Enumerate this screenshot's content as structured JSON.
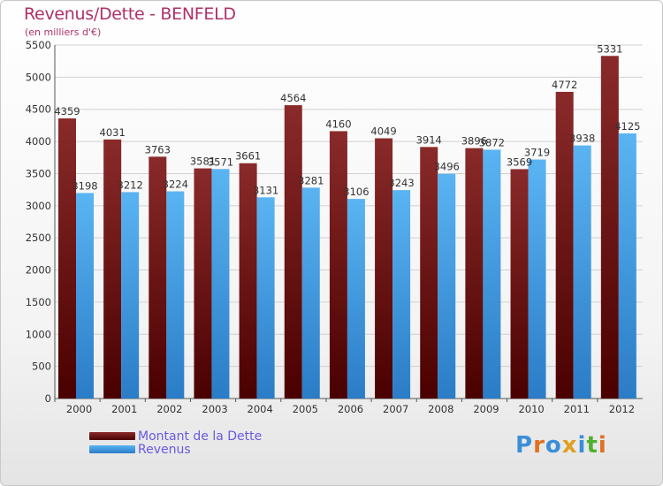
{
  "chart_data": {
    "type": "bar",
    "title": "Revenus/Dette - BENFELD",
    "subtitle": "(en milliers d'€)",
    "categories": [
      "2000",
      "2001",
      "2002",
      "2003",
      "2004",
      "2005",
      "2006",
      "2007",
      "2008",
      "2009",
      "2010",
      "2011",
      "2012"
    ],
    "series": [
      {
        "name": "Montant de la Dette",
        "color": "#7a1010",
        "values": [
          4359,
          4031,
          3763,
          3581,
          3661,
          4564,
          4160,
          4049,
          3914,
          3896,
          3569,
          4772,
          5331
        ]
      },
      {
        "name": "Revenus",
        "color": "#3e9ee6",
        "values": [
          3198,
          3212,
          3224,
          3571,
          3131,
          3281,
          3106,
          3243,
          3496,
          3872,
          3719,
          3938,
          4125
        ]
      }
    ],
    "ylim": [
      0,
      5500
    ],
    "yticks": [
      0,
      500,
      1000,
      1500,
      2000,
      2500,
      3000,
      3500,
      4000,
      4500,
      5000,
      5500
    ],
    "grid": true,
    "legend": "bottom-left"
  },
  "logo": {
    "text": "Proxiti",
    "colors": [
      "#3a8fd8",
      "#e07020",
      "#3a8fd8",
      "#e0a020",
      "#3a8fd8",
      "#50b030",
      "#e07020"
    ]
  }
}
